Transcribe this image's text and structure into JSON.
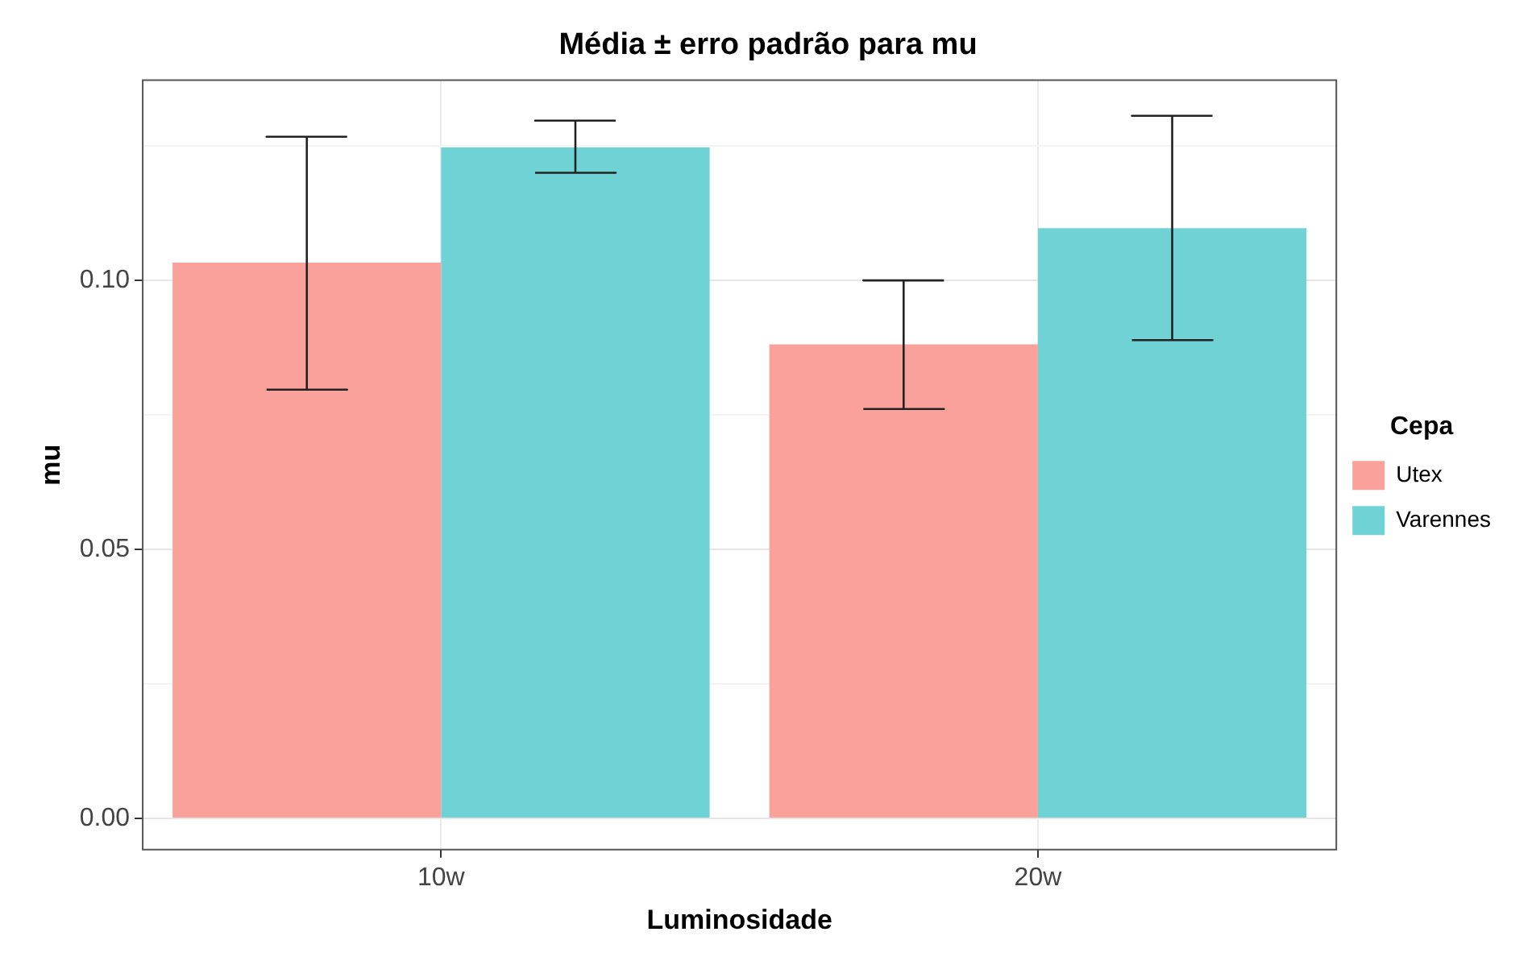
{
  "chart_data": {
    "type": "bar",
    "title": "Média ± erro padrão para mu",
    "xlabel": "Luminosidade",
    "ylabel": "mu",
    "legend_title": "Cepa",
    "categories": [
      "10w",
      "20w"
    ],
    "series": [
      {
        "name": "Utex",
        "color": "#f9a19a",
        "values": [
          0.1033,
          0.0881
        ],
        "errors": [
          [
            0.0797,
            0.1267
          ],
          [
            0.0761,
            0.1
          ]
        ]
      },
      {
        "name": "Varennes",
        "color": "#6fd3d6",
        "values": [
          0.1247,
          0.1097
        ],
        "errors": [
          [
            0.12,
            0.1297
          ],
          [
            0.0889,
            0.1306
          ]
        ]
      }
    ],
    "ylim": [
      -0.0058,
      0.1372
    ],
    "yticks": [
      {
        "value": 0,
        "label": "0.00"
      },
      {
        "value": 0.025,
        "label": null
      },
      {
        "value": 0.05,
        "label": "0.05"
      },
      {
        "value": 0.075,
        "label": null
      },
      {
        "value": 0.1,
        "label": "0.10"
      },
      {
        "value": 0.125,
        "label": null
      }
    ],
    "grid": true,
    "legend": "right"
  }
}
